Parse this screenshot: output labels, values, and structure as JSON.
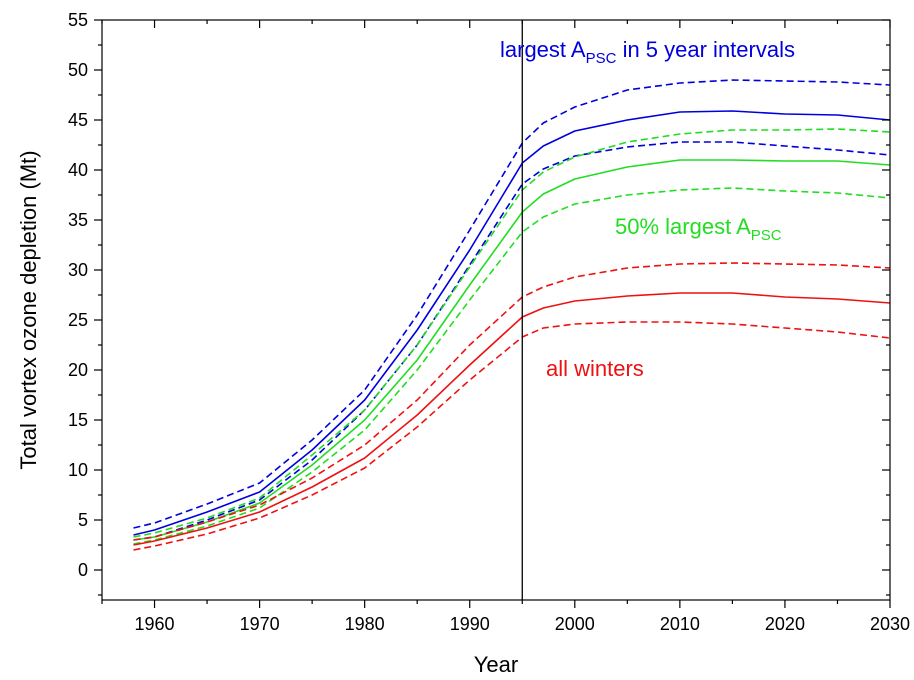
{
  "chart_data": {
    "type": "line",
    "xlabel": "Year",
    "ylabel": "Total vortex ozone depletion (Mt)",
    "xlim": [
      1955,
      2030
    ],
    "ylim": [
      -3,
      55
    ],
    "xticks": [
      1960,
      1970,
      1980,
      1990,
      2000,
      2010,
      2020,
      2030
    ],
    "yticks": [
      0,
      5,
      10,
      15,
      20,
      25,
      30,
      35,
      40,
      45,
      50,
      55
    ],
    "grid": false,
    "legend": "none",
    "vline": {
      "x": 1995,
      "color": "#000000"
    },
    "colors": {
      "blue": "#0000dd",
      "green": "#22dd22",
      "red": "#ee1111"
    },
    "annotations": [
      {
        "id": "blue",
        "text": "largest A",
        "sub": "PSC",
        "suffix": " in 5 year intervals",
        "color": "#0000dd"
      },
      {
        "id": "green",
        "text": "50% largest A",
        "sub": "PSC",
        "suffix": "",
        "color": "#22dd22"
      },
      {
        "id": "red",
        "text": "all winters",
        "sub": "",
        "suffix": "",
        "color": "#ee1111"
      }
    ],
    "series": [
      {
        "group": "blue",
        "style": "dashed",
        "color": "#0000dd",
        "x": [
          1958,
          1960,
          1965,
          1970,
          1975,
          1980,
          1985,
          1990,
          1995,
          1997,
          2000,
          2005,
          2010,
          2015,
          2020,
          2025,
          2030
        ],
        "y": [
          4.2,
          4.7,
          6.6,
          8.7,
          13.0,
          18.0,
          25.5,
          34.0,
          42.7,
          44.7,
          46.3,
          48.0,
          48.7,
          49.0,
          48.9,
          48.8,
          48.5
        ]
      },
      {
        "group": "blue",
        "style": "solid",
        "color": "#0000dd",
        "x": [
          1958,
          1960,
          1965,
          1970,
          1975,
          1980,
          1985,
          1990,
          1995,
          1997,
          2000,
          2005,
          2010,
          2015,
          2020,
          2025,
          2030
        ],
        "y": [
          3.5,
          4.0,
          5.8,
          7.8,
          12.0,
          17.0,
          24.0,
          32.0,
          40.7,
          42.4,
          43.9,
          45.0,
          45.8,
          45.9,
          45.6,
          45.5,
          45.0
        ]
      },
      {
        "group": "blue",
        "style": "dashed",
        "color": "#0000dd",
        "x": [
          1958,
          1960,
          1965,
          1970,
          1975,
          1980,
          1985,
          1990,
          1995,
          1997,
          2000,
          2005,
          2010,
          2015,
          2020,
          2025,
          2030
        ],
        "y": [
          3.0,
          3.3,
          5.0,
          7.0,
          11.0,
          16.0,
          22.5,
          30.5,
          38.6,
          40.1,
          41.4,
          42.3,
          42.8,
          42.8,
          42.4,
          42.0,
          41.5
        ]
      },
      {
        "group": "green",
        "style": "dashed",
        "color": "#22dd22",
        "x": [
          1958,
          1960,
          1965,
          1970,
          1975,
          1980,
          1985,
          1990,
          1995,
          1997,
          2000,
          2005,
          2010,
          2015,
          2020,
          2025,
          2030
        ],
        "y": [
          3.3,
          3.7,
          5.2,
          7.2,
          11.5,
          16.0,
          22.5,
          30.3,
          38.0,
          39.8,
          41.3,
          42.8,
          43.6,
          44.0,
          44.0,
          44.1,
          43.8
        ]
      },
      {
        "group": "green",
        "style": "solid",
        "color": "#22dd22",
        "x": [
          1958,
          1960,
          1965,
          1970,
          1975,
          1980,
          1985,
          1990,
          1995,
          1997,
          2000,
          2005,
          2010,
          2015,
          2020,
          2025,
          2030
        ],
        "y": [
          3.0,
          3.3,
          4.8,
          6.7,
          10.5,
          15.0,
          21.0,
          28.5,
          35.8,
          37.6,
          39.1,
          40.3,
          41.0,
          41.0,
          40.9,
          40.9,
          40.5
        ]
      },
      {
        "group": "green",
        "style": "dashed",
        "color": "#22dd22",
        "x": [
          1958,
          1960,
          1965,
          1970,
          1975,
          1980,
          1985,
          1990,
          1995,
          1997,
          2000,
          2005,
          2010,
          2015,
          2020,
          2025,
          2030
        ],
        "y": [
          2.6,
          3.0,
          4.4,
          6.2,
          9.8,
          14.0,
          20.0,
          27.0,
          33.8,
          35.3,
          36.6,
          37.5,
          38.0,
          38.2,
          37.9,
          37.7,
          37.2
        ]
      },
      {
        "group": "red",
        "style": "dashed",
        "color": "#ee1111",
        "x": [
          1958,
          1960,
          1965,
          1970,
          1975,
          1980,
          1985,
          1990,
          1995,
          1997,
          2000,
          2005,
          2010,
          2015,
          2020,
          2025,
          2030
        ],
        "y": [
          3.0,
          3.3,
          4.8,
          6.5,
          9.2,
          12.5,
          17.0,
          22.5,
          27.3,
          28.3,
          29.3,
          30.2,
          30.6,
          30.7,
          30.6,
          30.5,
          30.2
        ]
      },
      {
        "group": "red",
        "style": "solid",
        "color": "#ee1111",
        "x": [
          1958,
          1960,
          1965,
          1970,
          1975,
          1980,
          1985,
          1990,
          1995,
          1997,
          2000,
          2005,
          2010,
          2015,
          2020,
          2025,
          2030
        ],
        "y": [
          2.5,
          2.9,
          4.2,
          5.8,
          8.3,
          11.2,
          15.5,
          20.5,
          25.3,
          26.2,
          26.9,
          27.4,
          27.7,
          27.7,
          27.3,
          27.1,
          26.7
        ]
      },
      {
        "group": "red",
        "style": "dashed",
        "color": "#ee1111",
        "x": [
          1958,
          1960,
          1965,
          1970,
          1975,
          1980,
          1985,
          1990,
          1995,
          1997,
          2000,
          2005,
          2010,
          2015,
          2020,
          2025,
          2030
        ],
        "y": [
          2.0,
          2.4,
          3.6,
          5.2,
          7.5,
          10.2,
          14.3,
          19.0,
          23.3,
          24.2,
          24.6,
          24.8,
          24.8,
          24.6,
          24.2,
          23.8,
          23.2
        ]
      }
    ]
  }
}
